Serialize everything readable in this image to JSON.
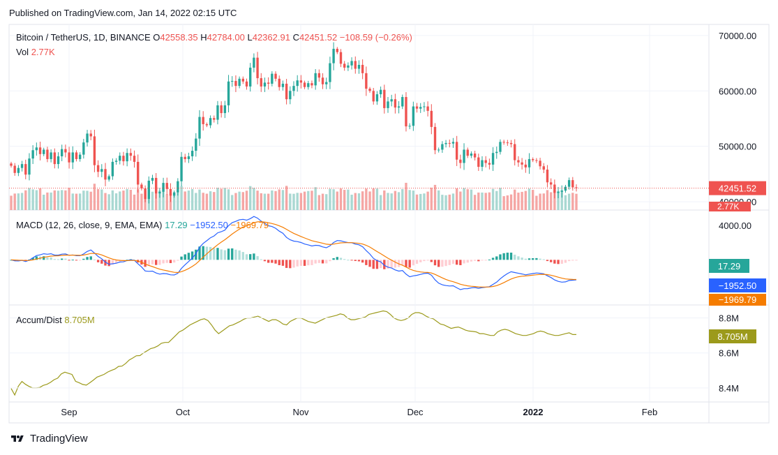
{
  "published": "Published on TradingView.com, Jan 14, 2022 02:15 UTC",
  "brand": "TradingView",
  "colors": {
    "up": "#26a69a",
    "down": "#ef5350",
    "macd": "#2962ff",
    "signal": "#f57c00",
    "accum": "#9c9a1b",
    "grid": "#f0f3fa",
    "text": "#131722"
  },
  "legend": {
    "main": {
      "symbol": "Bitcoin / TetherUS, 1D, BINANCE",
      "o_label": "O",
      "o": "42558.35",
      "h_label": "H",
      "h": "42784.00",
      "l_label": "L",
      "l": "42362.91",
      "c_label": "C",
      "c": "42451.52",
      "chg": "−108.59 (−0.26%)"
    },
    "vol": {
      "label": "Vol",
      "value": "2.77K"
    },
    "macd": {
      "label": "MACD (12, 26, close, 9, EMA, EMA)",
      "hist": "17.29",
      "macd": "−1952.50",
      "signal": "−1969.79"
    },
    "accum": {
      "label": "Accum/Dist",
      "value": "8.705M"
    }
  },
  "chart_data": [
    {
      "type": "candlestick",
      "title": "Bitcoin / TetherUS, 1D, BINANCE",
      "x_ticks": [
        "Sep",
        "Oct",
        "Nov",
        "Dec",
        "2022",
        "Feb"
      ],
      "y_ticks": [
        "40000.00",
        "50000.00",
        "60000.00",
        "70000.00"
      ],
      "ylim": [
        38500,
        72000
      ],
      "last_price_label": "42451.52",
      "close_series": [
        46500,
        45200,
        46100,
        46800,
        44900,
        47800,
        49300,
        49800,
        48600,
        49400,
        47700,
        48900,
        46800,
        48200,
        49500,
        48900,
        47100,
        48900,
        47700,
        48500,
        50700,
        52300,
        51800,
        46600,
        45400,
        45900,
        44000,
        44600,
        47200,
        47400,
        48300,
        47300,
        48800,
        48300,
        47200,
        43100,
        42400,
        40500,
        43800,
        44300,
        41500,
        41800,
        43400,
        42300,
        41100,
        41700,
        43700,
        48100,
        47700,
        48200,
        49200,
        51400,
        55300,
        54000,
        53800,
        55100,
        54800,
        57400,
        56000,
        57400,
        61700,
        61800,
        60900,
        62200,
        61700,
        60800,
        64200,
        66000,
        62300,
        60800,
        61500,
        61300,
        63100,
        62200,
        60700,
        61300,
        58500,
        60000,
        60900,
        61900,
        61500,
        60700,
        61400,
        61000,
        63200,
        62400,
        61200,
        61600,
        65000,
        67600,
        67000,
        64900,
        64200,
        64600,
        65400,
        64000,
        64700,
        63200,
        60400,
        60000,
        58100,
        59400,
        60200,
        56900,
        58100,
        58500,
        57000,
        57200,
        58900,
        53600,
        53700,
        57200,
        56800,
        57100,
        57200,
        56400,
        53500,
        49300,
        49400,
        50400,
        50600,
        50500,
        50800,
        47600,
        47000,
        49400,
        48300,
        48700,
        48000,
        46300,
        47500,
        47000,
        46700,
        48800,
        49000,
        50800,
        50700,
        50600,
        50400,
        47500,
        47100,
        46700,
        46200,
        47700,
        47500,
        47400,
        46400,
        45800,
        43500,
        43100,
        41600,
        41800,
        42000,
        42700,
        43900,
        42600,
        42451.52
      ],
      "volume": {
        "label": "Vol",
        "last": "2.77K"
      }
    },
    {
      "type": "histogram+line",
      "title": "MACD (12, 26, close, 9, EMA, EMA)",
      "y_ticks": [
        "4000.00"
      ],
      "last": {
        "histogram": "17.29",
        "macd": "−1952.50",
        "signal": "−1969.79"
      }
    },
    {
      "type": "line",
      "title": "Accum/Dist",
      "y_ticks": [
        "8.4M",
        "8.6M",
        "8.8M"
      ],
      "ylim": [
        8.32,
        8.87
      ],
      "last": "8.705M",
      "values": [
        8.397,
        8.36,
        8.41,
        8.437,
        8.421,
        8.409,
        8.4,
        8.4,
        8.403,
        8.415,
        8.421,
        8.432,
        8.447,
        8.456,
        8.48,
        8.49,
        8.484,
        8.477,
        8.438,
        8.43,
        8.42,
        8.416,
        8.43,
        8.445,
        8.462,
        8.47,
        8.478,
        8.491,
        8.5,
        8.508,
        8.523,
        8.525,
        8.54,
        8.56,
        8.571,
        8.584,
        8.585,
        8.6,
        8.612,
        8.625,
        8.63,
        8.64,
        8.655,
        8.66,
        8.66,
        8.68,
        8.7,
        8.72,
        8.73,
        8.745,
        8.76,
        8.77,
        8.78,
        8.79,
        8.795,
        8.785,
        8.76,
        8.73,
        8.71,
        8.725,
        8.74,
        8.755,
        8.76,
        8.77,
        8.78,
        8.792,
        8.8,
        8.8,
        8.805,
        8.81,
        8.8,
        8.79,
        8.78,
        8.79,
        8.79,
        8.78,
        8.765,
        8.76,
        8.78,
        8.79,
        8.8,
        8.8,
        8.79,
        8.78,
        8.775,
        8.77,
        8.78,
        8.79,
        8.8,
        8.805,
        8.81,
        8.815,
        8.823,
        8.818,
        8.8,
        8.79,
        8.79,
        8.795,
        8.8,
        8.805,
        8.82,
        8.825,
        8.83,
        8.835,
        8.84,
        8.836,
        8.82,
        8.8,
        8.79,
        8.785,
        8.79,
        8.8,
        8.82,
        8.83,
        8.83,
        8.823,
        8.81,
        8.8,
        8.795,
        8.78,
        8.765,
        8.76,
        8.75,
        8.74,
        8.745,
        8.748,
        8.74,
        8.73,
        8.725,
        8.723,
        8.72,
        8.71,
        8.71,
        8.705,
        8.7,
        8.7,
        8.72,
        8.73,
        8.735,
        8.73,
        8.72,
        8.71,
        8.705,
        8.7,
        8.7,
        8.705,
        8.71,
        8.72,
        8.725,
        8.72,
        8.71,
        8.705,
        8.7,
        8.7,
        8.705,
        8.71,
        8.715,
        8.705,
        8.705
      ]
    }
  ]
}
